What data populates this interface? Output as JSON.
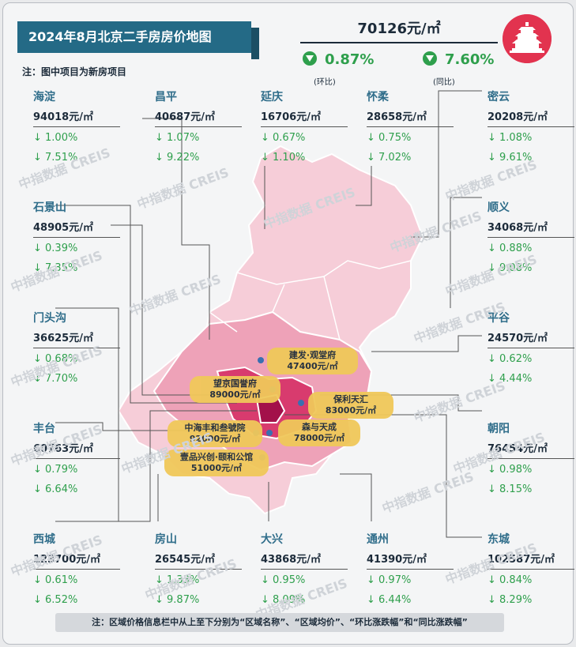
{
  "header": {
    "title": "2024年8月北京二手房房价地图",
    "note": "注：图中项目为新房项目",
    "average_price": "70126元/㎡",
    "mom_change": "0.87%",
    "mom_label": "(环比)",
    "yoy_change": "7.60%",
    "yoy_label": "(同比)"
  },
  "districts": [
    {
      "name": "海淀",
      "price": "94018元/㎡",
      "mom": "↓ 1.00%",
      "yoy": "↓ 7.51%"
    },
    {
      "name": "昌平",
      "price": "40687元/㎡",
      "mom": "↓ 1.07%",
      "yoy": "↓ 9.22%"
    },
    {
      "name": "延庆",
      "price": "16706元/㎡",
      "mom": "↓ 0.67%",
      "yoy": "↓ 1.10%"
    },
    {
      "name": "怀柔",
      "price": "28658元/㎡",
      "mom": "↓ 0.75%",
      "yoy": "↓ 7.02%"
    },
    {
      "name": "密云",
      "price": "20208元/㎡",
      "mom": "↓ 1.08%",
      "yoy": "↓ 9.61%"
    },
    {
      "name": "石景山",
      "price": "48905元/㎡",
      "mom": "↓ 0.39%",
      "yoy": "↓ 7.35%"
    },
    {
      "name": "顺义",
      "price": "34068元/㎡",
      "mom": "↓ 0.88%",
      "yoy": "↓ 9.08%"
    },
    {
      "name": "门头沟",
      "price": "36625元/㎡",
      "mom": "↓ 0.68%",
      "yoy": "↓ 7.70%"
    },
    {
      "name": "平谷",
      "price": "24570元/㎡",
      "mom": "↓ 0.62%",
      "yoy": "↓ 4.44%"
    },
    {
      "name": "丰台",
      "price": "60763元/㎡",
      "mom": "↓ 0.79%",
      "yoy": "↓ 6.64%"
    },
    {
      "name": "朝阳",
      "price": "76454元/㎡",
      "mom": "↓ 0.98%",
      "yoy": "↓ 8.15%"
    },
    {
      "name": "西城",
      "price": "123700元/㎡",
      "mom": "↓ 0.61%",
      "yoy": "↓ 6.52%"
    },
    {
      "name": "房山",
      "price": "26545元/㎡",
      "mom": "↓ 1.33%",
      "yoy": "↓ 9.87%"
    },
    {
      "name": "大兴",
      "price": "43868元/㎡",
      "mom": "↓ 0.95%",
      "yoy": "↓ 8.09%"
    },
    {
      "name": "通州",
      "price": "41390元/㎡",
      "mom": "↓ 0.97%",
      "yoy": "↓ 6.44%"
    },
    {
      "name": "东城",
      "price": "102587元/㎡",
      "mom": "↓ 0.84%",
      "yoy": "↓ 8.29%"
    }
  ],
  "projects": [
    {
      "name": "建发·观堂府",
      "price": "47400元/㎡"
    },
    {
      "name": "望京国誉府",
      "price": "89000元/㎡"
    },
    {
      "name": "保利天汇",
      "price": "83000元/㎡"
    },
    {
      "name": "中海丰和叁號院",
      "price": "92000元/㎡"
    },
    {
      "name": "森与天成",
      "price": "78000元/㎡"
    },
    {
      "name": "壹品兴创·颐和公馆",
      "price": "51000元/㎡"
    }
  ],
  "watermark": "中指数据 CREIS",
  "footer": "注：区域价格信息栏中从上至下分别为“区域名称”、“区域均价”、“环比涨跌幅”和“同比涨跌幅”",
  "colors": {
    "title_bg": "#246a86",
    "accent_green": "#2e9f4c",
    "tag_bg": "#f0c85a",
    "map_dark": "#c2185b",
    "map_light": "#f2b8c8"
  }
}
